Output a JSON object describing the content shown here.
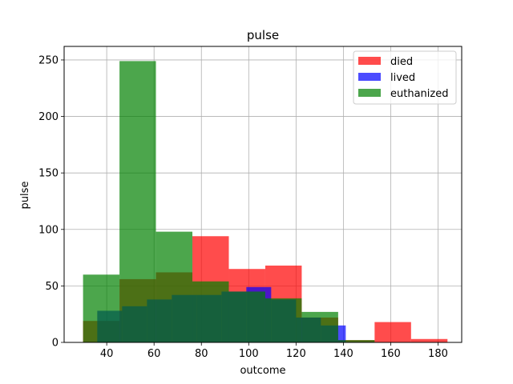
{
  "chart_data": {
    "type": "bar",
    "title": "pulse",
    "xlabel": "outcome",
    "ylabel": "pulse",
    "xlim": [
      22,
      190
    ],
    "ylim": [
      0,
      262
    ],
    "xticks": [
      40,
      60,
      80,
      100,
      120,
      140,
      160,
      180
    ],
    "yticks": [
      0,
      50,
      100,
      150,
      200,
      250
    ],
    "grid": true,
    "legend_position": "top-right",
    "opacity": 0.7,
    "series": [
      {
        "name": "died",
        "color": "#ff0000",
        "bins": [
          {
            "x0": 30,
            "x1": 45.4,
            "value": 19
          },
          {
            "x0": 45.4,
            "x1": 60.8,
            "value": 56
          },
          {
            "x0": 60.8,
            "x1": 76.2,
            "value": 62
          },
          {
            "x0": 76.2,
            "x1": 91.6,
            "value": 94
          },
          {
            "x0": 91.6,
            "x1": 107,
            "value": 65
          },
          {
            "x0": 107,
            "x1": 122.4,
            "value": 68
          },
          {
            "x0": 122.4,
            "x1": 137.8,
            "value": 22
          },
          {
            "x0": 137.8,
            "x1": 153.2,
            "value": 2
          },
          {
            "x0": 153.2,
            "x1": 168.6,
            "value": 18
          },
          {
            "x0": 168.6,
            "x1": 184,
            "value": 3
          }
        ]
      },
      {
        "name": "lived",
        "color": "#0000ff",
        "bins": [
          {
            "x0": 36,
            "x1": 46.5,
            "value": 28
          },
          {
            "x0": 46.5,
            "x1": 57,
            "value": 32
          },
          {
            "x0": 57,
            "x1": 67.5,
            "value": 38
          },
          {
            "x0": 67.5,
            "x1": 78,
            "value": 42
          },
          {
            "x0": 78,
            "x1": 88.5,
            "value": 42
          },
          {
            "x0": 88.5,
            "x1": 99,
            "value": 45
          },
          {
            "x0": 99,
            "x1": 109.5,
            "value": 49
          },
          {
            "x0": 109.5,
            "x1": 120,
            "value": 38
          },
          {
            "x0": 120,
            "x1": 130.5,
            "value": 22
          },
          {
            "x0": 130.5,
            "x1": 141,
            "value": 15
          }
        ]
      },
      {
        "name": "euthanized",
        "color": "#008000",
        "bins": [
          {
            "x0": 30,
            "x1": 45.4,
            "value": 60
          },
          {
            "x0": 45.4,
            "x1": 60.8,
            "value": 249
          },
          {
            "x0": 60.8,
            "x1": 76.2,
            "value": 98
          },
          {
            "x0": 76.2,
            "x1": 91.6,
            "value": 54
          },
          {
            "x0": 91.6,
            "x1": 107,
            "value": 45
          },
          {
            "x0": 107,
            "x1": 122.4,
            "value": 39
          },
          {
            "x0": 122.4,
            "x1": 137.8,
            "value": 27
          },
          {
            "x0": 137.8,
            "x1": 153.2,
            "value": 2
          },
          {
            "x0": 153.2,
            "x1": 168.6,
            "value": 0
          },
          {
            "x0": 168.6,
            "x1": 184,
            "value": 0
          }
        ]
      }
    ]
  }
}
